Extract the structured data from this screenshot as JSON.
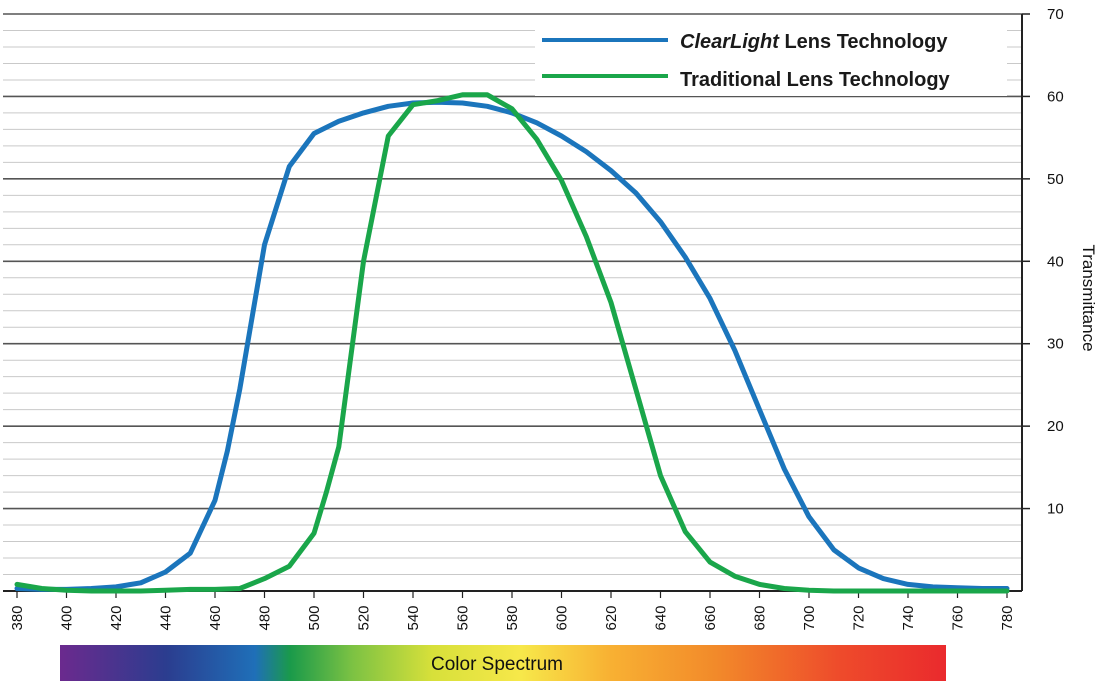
{
  "chart_data": {
    "type": "line",
    "ylabel": "Transmittance",
    "xlim": [
      375,
      785
    ],
    "ylim": [
      0,
      70
    ],
    "x_ticks": [
      380,
      400,
      420,
      440,
      460,
      480,
      500,
      520,
      540,
      560,
      580,
      600,
      620,
      640,
      660,
      680,
      700,
      720,
      740,
      760,
      780
    ],
    "y_ticks": [
      10,
      20,
      30,
      40,
      50,
      60,
      70
    ],
    "grid": "horizontal major and minor",
    "legend_position": "top-right",
    "spectrum_label": "Color Spectrum",
    "series": [
      {
        "name": "ClearLight Lens Technology",
        "name_italic": "ClearLight",
        "name_rest": " Lens Technology",
        "color": "#1b75bc",
        "x": [
          380,
          390,
          400,
          410,
          420,
          430,
          440,
          450,
          460,
          465,
          470,
          480,
          490,
          500,
          510,
          520,
          530,
          540,
          550,
          560,
          570,
          580,
          590,
          600,
          610,
          620,
          630,
          640,
          650,
          660,
          670,
          680,
          690,
          700,
          710,
          720,
          730,
          740,
          750,
          760,
          770,
          780
        ],
        "y": [
          0.3,
          0.2,
          0.2,
          0.3,
          0.5,
          1.0,
          2.3,
          4.6,
          11.0,
          17.0,
          24.5,
          42.0,
          51.5,
          55.5,
          57.0,
          58.0,
          58.8,
          59.2,
          59.3,
          59.2,
          58.8,
          58.0,
          56.8,
          55.2,
          53.3,
          51.0,
          48.3,
          44.8,
          40.5,
          35.5,
          29.2,
          22.0,
          14.8,
          9.0,
          5.0,
          2.8,
          1.5,
          0.8,
          0.5,
          0.4,
          0.3,
          0.3
        ]
      },
      {
        "name": "Traditional Lens Technology",
        "color": "#1aa64a",
        "x": [
          380,
          390,
          400,
          410,
          420,
          430,
          440,
          450,
          460,
          470,
          480,
          490,
          500,
          505,
          510,
          520,
          530,
          540,
          550,
          560,
          570,
          580,
          590,
          600,
          610,
          620,
          630,
          640,
          650,
          660,
          670,
          680,
          690,
          700,
          710,
          720,
          730,
          740,
          750,
          760,
          770,
          780
        ],
        "y": [
          0.8,
          0.3,
          0.1,
          0.0,
          0.0,
          0.0,
          0.1,
          0.2,
          0.2,
          0.3,
          1.5,
          3.0,
          7.0,
          12.0,
          17.5,
          40.0,
          55.2,
          59.0,
          59.5,
          60.2,
          60.2,
          58.5,
          54.8,
          49.8,
          43.0,
          35.0,
          24.5,
          14.0,
          7.2,
          3.5,
          1.8,
          0.8,
          0.3,
          0.1,
          0.0,
          0.0,
          0.0,
          0.0,
          0.0,
          0.0,
          0.0,
          0.0
        ]
      }
    ]
  }
}
